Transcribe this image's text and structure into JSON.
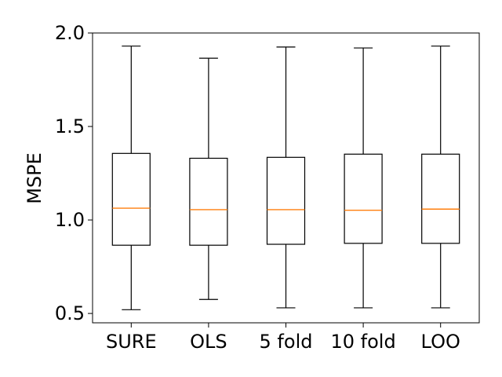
{
  "chart_data": {
    "type": "box",
    "title": "",
    "xlabel": "",
    "ylabel": "MSPE",
    "ylim": [
      0.45,
      2.0
    ],
    "yticks": [
      0.5,
      1.0,
      1.5,
      2.0
    ],
    "ytick_labels": [
      "0.5",
      "1.0",
      "1.5",
      "2.0"
    ],
    "grid": false,
    "colors": {
      "box": "#000000",
      "median": "#ff7f0e"
    },
    "categories": [
      "SURE",
      "OLS",
      "5 fold",
      "10 fold",
      "LOO"
    ],
    "boxes": [
      {
        "label": "SURE",
        "whisker_low": 0.52,
        "q1": 0.865,
        "median": 1.063,
        "q3": 1.356,
        "whisker_high": 1.93
      },
      {
        "label": "OLS",
        "whisker_low": 0.575,
        "q1": 0.865,
        "median": 1.055,
        "q3": 1.33,
        "whisker_high": 1.865
      },
      {
        "label": "5 fold",
        "whisker_low": 0.53,
        "q1": 0.87,
        "median": 1.055,
        "q3": 1.335,
        "whisker_high": 1.925
      },
      {
        "label": "10 fold",
        "whisker_low": 0.53,
        "q1": 0.875,
        "median": 1.052,
        "q3": 1.352,
        "whisker_high": 1.92
      },
      {
        "label": "LOO",
        "whisker_low": 0.53,
        "q1": 0.875,
        "median": 1.058,
        "q3": 1.352,
        "whisker_high": 1.93
      }
    ]
  }
}
